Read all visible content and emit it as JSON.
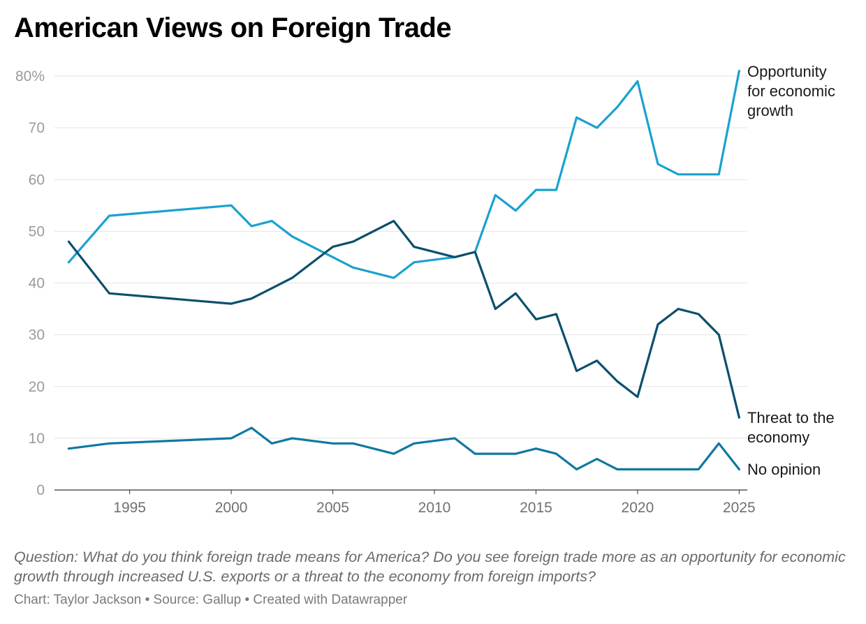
{
  "chart_data": {
    "type": "line",
    "title": "American Views on Foreign Trade",
    "notes": "Question: What do you think foreign trade means for America? Do you see foreign trade more as an opportunity for economic growth through increased U.S. exports or a threat to the economy from foreign imports?",
    "source": "Chart: Taylor Jackson • Source: Gallup • Created with Datawrapper",
    "x": [
      1992,
      1994,
      2000,
      2001,
      2002,
      2003,
      2005,
      2006,
      2008,
      2009,
      2011,
      2012,
      2013,
      2014,
      2015,
      2016,
      2017,
      2018,
      2019,
      2020,
      2021,
      2022,
      2023,
      2024,
      2025
    ],
    "xlim": [
      1991.3,
      2025.4
    ],
    "ylim": [
      0,
      80
    ],
    "x_ticks": [
      "1995",
      "2000",
      "2005",
      "2010",
      "2015",
      "2020",
      "2025"
    ],
    "y_ticks": [
      "0",
      "10",
      "20",
      "30",
      "40",
      "50",
      "60",
      "70",
      "80%"
    ],
    "grid": true,
    "legend": "labels at right end of lines",
    "series": [
      {
        "name_lines": [
          "Opportunity",
          "for economic",
          "growth"
        ],
        "color": "#1ba1cf",
        "values": [
          44,
          53,
          55,
          51,
          52,
          49,
          45,
          43,
          41,
          44,
          45,
          46,
          57,
          54,
          58,
          58,
          72,
          70,
          74,
          79,
          63,
          61,
          61,
          61,
          81
        ]
      },
      {
        "name_lines": [
          "Threat to the",
          "economy"
        ],
        "color": "#0b4f6c",
        "values": [
          48,
          38,
          36,
          37,
          39,
          41,
          47,
          48,
          52,
          47,
          45,
          46,
          35,
          38,
          33,
          34,
          23,
          25,
          21,
          18,
          32,
          35,
          34,
          30,
          14
        ]
      },
      {
        "name_lines": [
          "No opinion"
        ],
        "color": "#0f78a0",
        "values": [
          8,
          9,
          10,
          12,
          9,
          10,
          9,
          9,
          7,
          9,
          10,
          7,
          7,
          7,
          8,
          7,
          4,
          6,
          4,
          4,
          4,
          4,
          4,
          9,
          4
        ]
      }
    ]
  }
}
